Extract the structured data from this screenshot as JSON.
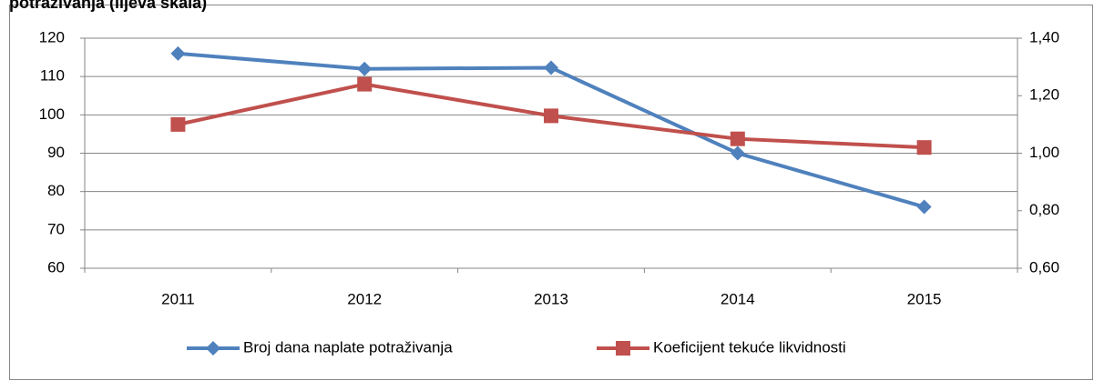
{
  "chart_data": {
    "type": "line",
    "title": "potraživanja (lijeva skala)",
    "categories": [
      "2011",
      "2012",
      "2013",
      "2014",
      "2015"
    ],
    "series": [
      {
        "name": "Broj dana naplate potraživanja",
        "color": "#4f81bd",
        "marker": "diamond",
        "values": [
          116,
          112,
          112.3,
          90,
          76
        ]
      },
      {
        "name": "Koeficijent tekuće likvidnosti",
        "color": "#c0504d",
        "marker": "square",
        "axis": "y2",
        "values": [
          1.1,
          1.24,
          1.13,
          1.05,
          1.02
        ]
      }
    ],
    "ylim": [
      60,
      120
    ],
    "yticks": [
      60,
      70,
      80,
      90,
      100,
      110,
      120
    ],
    "y2lim": [
      0.6,
      1.4
    ],
    "y2ticks": [
      {
        "value": 0.6,
        "label": "0,60"
      },
      {
        "value": 0.8,
        "label": "0,80"
      },
      {
        "value": 1.0,
        "label": "1,00"
      },
      {
        "value": 1.2,
        "label": "1,20"
      },
      {
        "value": 1.4,
        "label": "1,40"
      }
    ],
    "grid": true,
    "legend": "bottom"
  }
}
